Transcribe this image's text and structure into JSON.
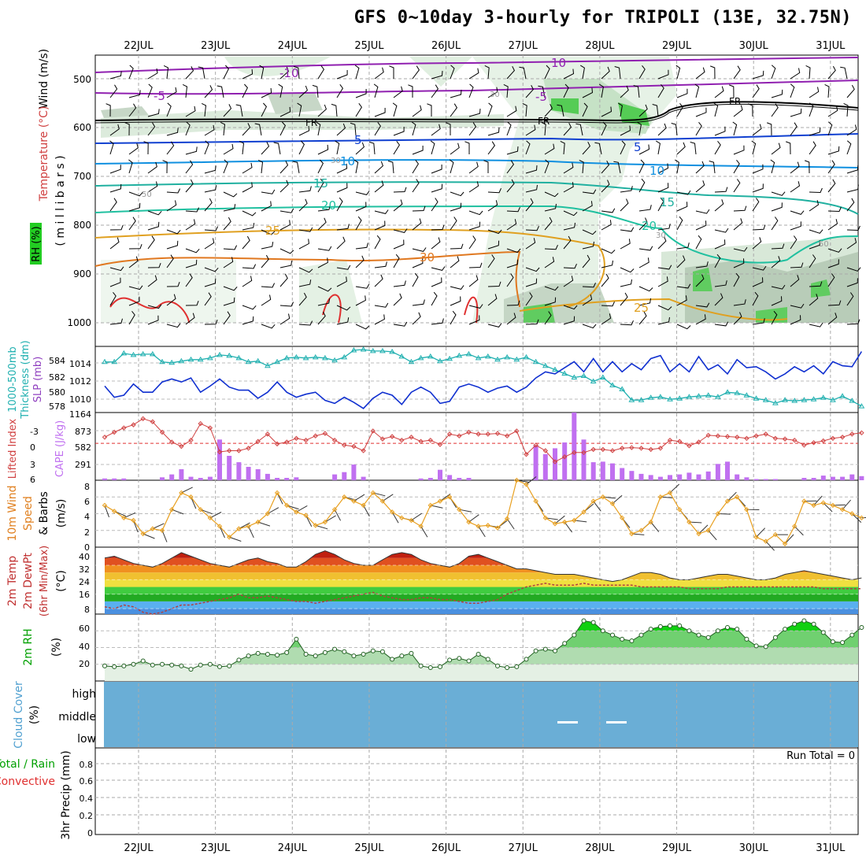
{
  "title": "GFS 0~10day 3-hourly for TRIPOLI (13E, 32.75N)",
  "dates": [
    "22JUL",
    "23JUL",
    "24JUL",
    "25JUL",
    "26JUL",
    "27JUL",
    "28JUL",
    "29JUL",
    "30JUL",
    "31JUL"
  ],
  "colors": {
    "rh_shade": "#22cc22",
    "temperature": "#d04040",
    "wind": "#000000",
    "thickness": "#20b0b0",
    "slp": "#1030d0",
    "lifted_index": "#d04040",
    "cape": "#c070f0",
    "wind10": "#e8a020",
    "rh2m": "#00c000",
    "cloud": "#6aaed6",
    "precip_total": "#00a000",
    "precip_conv": "#e03030"
  },
  "panels": {
    "upper": {
      "ylabel_wind": "Wind (m/s)",
      "ylabel_temp": "Temperature (°C)",
      "ylabel_rh": "RH (%)",
      "ylabel_p": "( m i l l i b a r s )",
      "p_ticks": [
        "500",
        "600",
        "700",
        "800",
        "900",
        "1000"
      ],
      "contour_labels": {
        "fr": "FR",
        "m10": "-10",
        "m5": "-5",
        "p5": "5",
        "p10": "10",
        "p15": "15",
        "p20": "20",
        "p25": "25",
        "p30": "30",
        "rh30": "30",
        "rh50": "50"
      }
    },
    "thickness": {
      "ylabel_a": "1000-500mb",
      "ylabel_b": "Thickness (dm)",
      "ylabel_c": "SLP (mb)",
      "left_ticks": [
        "584",
        "582",
        "580",
        "578"
      ],
      "right_ticks": [
        "1014",
        "1012",
        "1010"
      ]
    },
    "cape": {
      "ylabel_a": "Lifted Index",
      "ylabel_b": "CAPE (J/kg)",
      "left_ticks": [
        "-3",
        "0",
        "3",
        "6"
      ],
      "right_ticks": [
        "1164",
        "873",
        "582",
        "291"
      ]
    },
    "wind10": {
      "ylabel_a": "10m Wind",
      "ylabel_b": "Speed",
      "ylabel_c": "& Barbs",
      "ylabel_d": "(m/s)",
      "ticks": [
        "8",
        "6",
        "4",
        "2",
        "0"
      ]
    },
    "temp2m": {
      "ylabel_a": "2m Temp",
      "ylabel_b": "2m DewPt",
      "ylabel_c": "(6hr Min/Max)",
      "ylabel_d": "(°C)",
      "ticks": [
        "40",
        "32",
        "24",
        "16",
        "8"
      ]
    },
    "rh2m": {
      "ylabel_a": "2m RH",
      "ylabel_b": "(%)",
      "ticks": [
        "60",
        "40",
        "20"
      ]
    },
    "cloud": {
      "ylabel_a": "Cloud Cover",
      "ylabel_b": "(%)",
      "levels": [
        "high",
        "middle",
        "low"
      ]
    },
    "precip": {
      "ylabel_a": "Total / Rain",
      "ylabel_b": "Convective",
      "ylabel_c": "3hr Precip (mm)",
      "ticks": [
        "0.8",
        "0.6",
        "0.4",
        "0.2",
        "0"
      ],
      "run_total": "Run Total = 0"
    }
  },
  "chart_data": [
    {
      "type": "line",
      "name_key": "slp_thickness",
      "x": [
        "21JUL 12Z",
        "21JUL 15Z",
        "21JUL 18Z",
        "21JUL 21Z",
        "22JUL 00Z",
        "22JUL 03Z",
        "22JUL 06Z",
        "22JUL 09Z",
        "22JUL 12Z",
        "22JUL 15Z",
        "22JUL 18Z",
        "22JUL 21Z",
        "23JUL 00Z",
        "23JUL 03Z",
        "23JUL 06Z",
        "23JUL 09Z",
        "23JUL 12Z",
        "23JUL 15Z",
        "23JUL 18Z",
        "23JUL 21Z",
        "24JUL 00Z",
        "24JUL 03Z",
        "24JUL 06Z",
        "24JUL 09Z",
        "24JUL 12Z",
        "24JUL 15Z",
        "24JUL 18Z",
        "24JUL 21Z",
        "25JUL 00Z",
        "25JUL 03Z",
        "25JUL 06Z",
        "25JUL 09Z",
        "25JUL 12Z",
        "25JUL 15Z",
        "25JUL 18Z",
        "25JUL 21Z",
        "26JUL 00Z",
        "26JUL 03Z",
        "26JUL 06Z",
        "26JUL 09Z",
        "26JUL 12Z",
        "26JUL 15Z",
        "26JUL 18Z",
        "26JUL 21Z",
        "27JUL 00Z",
        "27JUL 03Z",
        "27JUL 06Z",
        "27JUL 09Z",
        "27JUL 12Z",
        "27JUL 15Z",
        "27JUL 18Z",
        "27JUL 21Z",
        "28JUL 00Z",
        "28JUL 03Z",
        "28JUL 06Z",
        "28JUL 09Z",
        "28JUL 12Z",
        "28JUL 15Z",
        "28JUL 18Z",
        "28JUL 21Z",
        "29JUL 00Z",
        "29JUL 03Z",
        "29JUL 06Z",
        "29JUL 09Z",
        "29JUL 12Z",
        "29JUL 15Z",
        "29JUL 18Z",
        "29JUL 21Z",
        "30JUL 00Z",
        "30JUL 03Z",
        "30JUL 06Z",
        "30JUL 09Z",
        "30JUL 12Z",
        "30JUL 15Z",
        "30JUL 18Z",
        "30JUL 21Z",
        "31JUL 00Z",
        "31JUL 03Z",
        "31JUL 06Z",
        "31JUL 09Z"
      ],
      "series": [
        {
          "name": "SLP (mb)",
          "values": [
            1011.6,
            1010.5,
            1010.7,
            1011.8,
            1011.0,
            1011.0,
            1012.0,
            1012.3,
            1012.0,
            1012.4,
            1011.0,
            1011.6,
            1012.3,
            1011.5,
            1011.2,
            1011.2,
            1010.4,
            1011.0,
            1012.0,
            1011.0,
            1010.5,
            1010.8,
            1011.0,
            1010.2,
            1009.9,
            1010.5,
            1010.0,
            1009.4,
            1010.4,
            1011.0,
            1010.7,
            1009.8,
            1011.0,
            1011.5,
            1011.0,
            1009.9,
            1010.1,
            1011.5,
            1011.8,
            1011.5,
            1011.0,
            1011.4,
            1011.6,
            1011.0,
            1011.5,
            1012.4,
            1013.0,
            1012.8,
            1013.4,
            1014.0,
            1013.0,
            1014.3,
            1013.0,
            1014.0,
            1013.0,
            1013.8,
            1013.2,
            1014.3,
            1014.6,
            1013.0,
            1013.8,
            1013.0,
            1014.5,
            1013.2,
            1013.7,
            1012.8,
            1014.2,
            1013.4,
            1013.5,
            1013.0,
            1012.3,
            1012.8,
            1013.5,
            1013.0,
            1013.6,
            1012.8,
            1014.0,
            1013.6,
            1013.5,
            1015.0
          ]
        },
        {
          "name": "1000-500mb Thickness (dm)",
          "values": [
            583.5,
            583.5,
            584.6,
            584.4,
            584.5,
            584.5,
            583.5,
            583.4,
            583.6,
            583.8,
            583.8,
            584.0,
            584.4,
            584.3,
            584.0,
            583.5,
            583.6,
            583.0,
            583.5,
            584.0,
            584.1,
            584.0,
            584.1,
            584.0,
            583.7,
            584.1,
            585.0,
            585.1,
            584.9,
            584.9,
            584.8,
            584.2,
            583.5,
            584.0,
            584.2,
            583.6,
            583.9,
            584.3,
            584.5,
            584.0,
            584.2,
            583.8,
            584.1,
            583.8,
            584.1,
            583.5,
            583.0,
            582.5,
            582.0,
            581.5,
            581.7,
            581.0,
            581.5,
            580.5,
            580.0,
            578.6,
            578.6,
            578.9,
            579.0,
            578.7,
            578.8,
            579.0,
            579.1,
            579.2,
            579.0,
            579.6,
            579.5,
            579.2,
            578.8,
            578.6,
            578.2,
            578.6,
            578.5,
            578.6,
            578.7,
            578.9,
            578.6,
            579.1,
            578.5,
            577.8
          ]
        }
      ],
      "left_ylim": [
        577,
        585.5
      ],
      "right_ylim": [
        1009,
        1015.5
      ]
    },
    {
      "type": "bar",
      "name_key": "cape_li",
      "series": [
        {
          "name": "CAPE (J/kg)",
          "values": [
            30,
            30,
            30,
            0,
            0,
            0,
            50,
            100,
            190,
            60,
            40,
            60,
            700,
            420,
            310,
            230,
            190,
            110,
            40,
            40,
            50,
            0,
            0,
            0,
            100,
            140,
            270,
            60,
            0,
            0,
            0,
            0,
            0,
            30,
            40,
            180,
            90,
            40,
            40,
            0,
            0,
            0,
            0,
            0,
            0,
            600,
            450,
            550,
            650,
            1164,
            700,
            310,
            320,
            290,
            210,
            160,
            110,
            90,
            60,
            90,
            100,
            130,
            100,
            150,
            280,
            320,
            100,
            50,
            20,
            20,
            20,
            0,
            0,
            40,
            40,
            80,
            60,
            60,
            100,
            70
          ]
        },
        {
          "name": "Lifted Index",
          "values": [
            -1.0,
            -1.8,
            -2.5,
            -3.0,
            -4.0,
            -3.5,
            -1.8,
            -0.2,
            0.5,
            -0.5,
            -3.2,
            -2.5,
            1.4,
            1.2,
            1.2,
            0.8,
            -0.3,
            -1.5,
            0.1,
            -0.2,
            -0.8,
            -0.5,
            -1.2,
            -1.6,
            -0.5,
            0.3,
            0.5,
            1.2,
            -2.0,
            -0.7,
            -1.1,
            -0.5,
            -1.0,
            -0.3,
            -0.5,
            0.2,
            -1.5,
            -1.2,
            -1.8,
            -1.5,
            -1.5,
            -1.6,
            -1.2,
            -2.0,
            1.8,
            0.3,
            1.2,
            3.0,
            2.2,
            1.5,
            1.5,
            1.0,
            1.0,
            1.2,
            0.8,
            0.7,
            0.8,
            1.0,
            0.8,
            -0.5,
            -0.3,
            0.4,
            -0.2,
            -1.3,
            -1.2,
            -1.1,
            -1.0,
            -0.8,
            -1.2,
            -1.5,
            -0.8,
            -0.7,
            -0.5,
            0.3,
            -0.1,
            -0.4,
            -0.8,
            -1.0,
            -1.5,
            -1.7
          ]
        }
      ],
      "left_ylim": [
        6,
        -5
      ],
      "right_ylim": [
        0,
        1164
      ]
    },
    {
      "type": "line",
      "name_key": "wind10",
      "series": [
        {
          "name": "10m Wind Speed (m/s)",
          "values": [
            5.0,
            4.3,
            3.5,
            3.2,
            1.6,
            2.2,
            2.0,
            4.5,
            6.5,
            6.0,
            4.5,
            3.5,
            2.5,
            1.2,
            2.2,
            2.5,
            3.0,
            4.0,
            6.5,
            5.0,
            4.2,
            3.8,
            2.6,
            3.0,
            4.5,
            6.0,
            5.5,
            5.0,
            6.5,
            5.5,
            4.2,
            3.5,
            3.2,
            2.5,
            5.0,
            5.5,
            6.0,
            4.5,
            3.0,
            2.5,
            2.6,
            2.3,
            3.4,
            8.0,
            7.5,
            5.5,
            3.5,
            2.8,
            3.0,
            3.2,
            4.2,
            5.5,
            6.0,
            5.2,
            3.5,
            1.6,
            2.0,
            3.0,
            6.0,
            6.5,
            4.5,
            3.0,
            1.6,
            2.0,
            4.0,
            5.5,
            6.0,
            4.5,
            1.2,
            0.7,
            1.5,
            0.4,
            2.5,
            5.5,
            5.0,
            5.3,
            5.0,
            4.5,
            4.0,
            3.5
          ]
        }
      ],
      "ylim": [
        0,
        8
      ]
    },
    {
      "type": "area",
      "name_key": "temp2m",
      "series": [
        {
          "name": "2m Temp (°C)",
          "values": [
            36,
            37,
            35,
            33,
            32,
            31,
            33,
            36,
            39,
            37,
            35,
            33,
            32,
            31,
            33,
            35,
            36,
            34,
            33,
            31,
            31,
            34,
            38,
            40,
            38,
            35,
            33,
            32,
            32,
            35,
            38,
            39,
            38,
            35,
            33,
            32,
            31,
            33,
            37,
            38,
            36,
            34,
            32,
            30,
            30,
            29,
            28,
            27,
            27,
            27,
            26,
            25,
            24,
            23,
            24,
            26,
            28,
            28,
            27,
            25,
            24,
            24,
            25,
            26,
            27,
            27,
            26,
            25,
            24,
            24,
            25,
            27,
            28,
            29,
            28,
            27,
            26,
            25,
            24,
            25
          ]
        },
        {
          "name": "2m DewPt (°C)",
          "values": [
            9,
            8,
            10,
            9,
            6,
            5,
            6,
            8,
            10,
            10,
            11,
            12,
            13,
            14,
            16,
            14,
            14,
            15,
            14,
            13,
            12,
            12,
            11,
            12,
            13,
            14,
            15,
            16,
            17,
            15,
            14,
            13,
            13,
            14,
            14,
            13,
            13,
            12,
            11,
            11,
            12,
            13,
            16,
            18,
            20,
            21,
            22,
            21,
            21,
            21,
            22,
            21,
            21,
            21,
            21,
            21,
            20,
            20,
            20,
            20,
            20,
            19,
            19,
            19,
            19,
            20,
            20,
            20,
            20,
            20,
            20,
            20,
            20,
            20,
            20,
            19,
            19,
            19,
            19,
            19
          ]
        }
      ],
      "ylim": [
        5,
        42
      ]
    },
    {
      "type": "area",
      "name_key": "rh2m",
      "series": [
        {
          "name": "2m RH (%)",
          "values": [
            18,
            17,
            18,
            20,
            24,
            19,
            20,
            19,
            18,
            14,
            19,
            20,
            17,
            18,
            25,
            30,
            33,
            32,
            31,
            34,
            50,
            32,
            30,
            34,
            38,
            35,
            30,
            32,
            36,
            35,
            26,
            30,
            33,
            18,
            16,
            17,
            25,
            27,
            24,
            32,
            26,
            18,
            16,
            17,
            26,
            36,
            38,
            36,
            45,
            55,
            72,
            70,
            60,
            55,
            50,
            48,
            55,
            62,
            65,
            66,
            66,
            60,
            55,
            52,
            60,
            64,
            62,
            50,
            42,
            41,
            52,
            62,
            68,
            72,
            68,
            58,
            47,
            46,
            55,
            64
          ]
        }
      ],
      "ylim": [
        0,
        80
      ]
    },
    {
      "type": "table",
      "name_key": "cloud_cover",
      "rows": [
        "high",
        "middle",
        "low"
      ],
      "values": "0 across all levels"
    },
    {
      "type": "bar",
      "name_key": "precip",
      "series": [
        {
          "name": "3hr Precip (mm)",
          "values": []
        }
      ],
      "ylim": [
        0,
        1.0
      ]
    }
  ]
}
